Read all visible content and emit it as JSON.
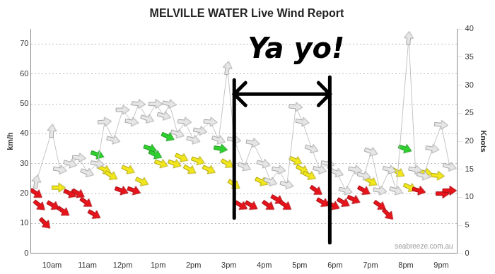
{
  "chart_data": {
    "type": "scatter",
    "title": "MELVILLE WATER Live Wind Report",
    "y_label": "km/h",
    "y2_label": "Knots",
    "xlim": [
      9.4,
      21.45
    ],
    "xticks": [
      {
        "value": 10,
        "label": "10am"
      },
      {
        "value": 11,
        "label": "11am"
      },
      {
        "value": 12,
        "label": "12pm"
      },
      {
        "value": 13,
        "label": "1pm"
      },
      {
        "value": 14,
        "label": "2pm"
      },
      {
        "value": 15,
        "label": "3pm"
      },
      {
        "value": 16,
        "label": "4pm"
      },
      {
        "value": 17,
        "label": "5pm"
      },
      {
        "value": 18,
        "label": "6pm"
      },
      {
        "value": 19,
        "label": "7pm"
      },
      {
        "value": 20,
        "label": "8pm"
      },
      {
        "value": 21,
        "label": "9pm"
      }
    ],
    "ylim": [
      0,
      75
    ],
    "yticks": [
      0,
      10,
      20,
      30,
      40,
      50,
      60,
      70
    ],
    "y2lim": [
      0,
      40
    ],
    "y2ticks": [
      0,
      5,
      10,
      15,
      20,
      25,
      30,
      35,
      40
    ],
    "grid": true,
    "annotations": [
      {
        "text": "Ya yo!",
        "x_range": [
          15.15,
          17.85
        ]
      },
      {
        "text": "seabreeze.com.au"
      }
    ],
    "series": [
      {
        "color": "#e6e6e6",
        "marker": "arrow",
        "line_style": "solid",
        "x": [
          9.56,
          10.0,
          10.23,
          10.52,
          10.77,
          11.0,
          11.29,
          11.49,
          11.74,
          12.0,
          12.26,
          12.45,
          12.7,
          12.93,
          13.17,
          13.32,
          13.55,
          13.75,
          14.0,
          14.19,
          14.48,
          14.71,
          14.96,
          15.15,
          15.44,
          15.68,
          15.98,
          16.18,
          16.41,
          16.64,
          16.89,
          17.08,
          17.34,
          17.57,
          17.8,
          18.05,
          18.3,
          18.57,
          18.82,
          19.02,
          19.27,
          19.54,
          19.73,
          20.08,
          20.27,
          20.5,
          20.75,
          21.0,
          21.24
        ],
        "values": [
          24,
          41,
          28,
          30,
          32,
          27,
          30,
          44,
          38,
          48,
          44,
          50,
          45,
          50,
          46,
          50,
          40,
          44,
          38,
          41,
          44,
          38,
          62,
          38,
          29,
          37,
          30,
          24,
          28,
          23,
          49,
          44,
          35,
          28,
          30,
          27,
          21,
          28,
          26,
          34,
          21,
          28,
          21,
          72,
          28,
          26,
          35,
          43,
          29
        ],
        "direction": [
          -80,
          -85,
          10,
          15,
          5,
          20,
          10,
          -5,
          15,
          0,
          10,
          5,
          20,
          0,
          15,
          10,
          20,
          5,
          15,
          10,
          5,
          20,
          -80,
          10,
          25,
          10,
          15,
          20,
          10,
          15,
          5,
          10,
          20,
          15,
          10,
          20,
          15,
          10,
          15,
          20,
          10,
          15,
          20,
          -85,
          10,
          15,
          10,
          5,
          15
        ]
      },
      {
        "color": "#e8141b",
        "marker": "arrow",
        "line_style": "none",
        "colors": [
          "#e8141b",
          "#e8141b",
          "#e8141b",
          "#e8141b",
          "#f2e61c",
          "#e8141b",
          "#e8141b",
          "#e8141b",
          "#e8141b",
          "#e8141b",
          "#2ed12e",
          "#f2e61c",
          "#f2e61c",
          "#e8141b",
          "#f2e61c",
          "#e8141b",
          "#f2e61c",
          "#2ed12e",
          "#2ed12e",
          "#f2e61c",
          "#2ed12e",
          "#f2e61c",
          "#f2e61c",
          "#f2e61c",
          "#f2e61c",
          "#f2e61c",
          "#2ed12e",
          "#f2e61c",
          "#f2e61c",
          "#e8141b",
          "#e8141b",
          "#f2e61c",
          "#e8141b",
          "#e8141b",
          "#e8141b",
          "#f2e61c",
          "#f2e61c",
          "#f2e61c",
          "#e8141b",
          "#e8141b",
          "#e8141b",
          "#e8141b",
          "#e8141b",
          "#e8141b",
          "#f2e61c",
          "#e8141b",
          "#e8141b",
          "#f2e61c",
          "#2ed12e",
          "#f2e61c",
          "#e8141b",
          "#f2e61c",
          "#f2e61c",
          "#e8141b",
          "#e8141b"
        ],
        "x": [
          9.56,
          9.65,
          9.81,
          10.04,
          10.19,
          10.33,
          10.52,
          10.75,
          10.97,
          11.2,
          11.29,
          11.49,
          11.68,
          11.97,
          12.16,
          12.32,
          12.55,
          12.78,
          12.93,
          13.09,
          13.28,
          13.47,
          13.67,
          13.9,
          14.13,
          14.44,
          14.77,
          14.96,
          15.15,
          15.35,
          15.64,
          15.93,
          16.12,
          16.37,
          16.6,
          16.89,
          17.08,
          17.28,
          17.47,
          17.66,
          17.95,
          18.24,
          18.53,
          18.82,
          19.02,
          19.27,
          19.5,
          19.79,
          19.98,
          20.12,
          20.37,
          20.56,
          20.9,
          21.04,
          21.24
        ],
        "values": [
          20,
          16,
          10,
          16,
          22,
          14,
          20,
          20,
          17,
          13,
          33,
          28,
          26,
          21,
          28,
          21,
          24,
          35,
          33,
          30,
          39,
          30,
          32,
          28,
          31,
          28,
          35,
          30,
          23,
          16,
          16,
          24,
          16,
          18,
          16,
          31,
          28,
          26,
          21,
          17,
          16,
          17,
          18,
          21,
          24,
          16,
          13,
          27,
          35,
          22,
          21,
          27,
          26,
          20,
          21
        ],
        "direction": [
          35,
          40,
          45,
          30,
          0,
          35,
          25,
          30,
          35,
          30,
          20,
          25,
          30,
          20,
          25,
          20,
          25,
          20,
          25,
          20,
          25,
          20,
          25,
          30,
          20,
          25,
          10,
          30,
          35,
          30,
          30,
          25,
          35,
          30,
          35,
          25,
          30,
          25,
          35,
          30,
          25,
          30,
          25,
          30,
          30,
          35,
          45,
          30,
          20,
          25,
          15,
          10,
          5,
          0,
          0
        ]
      }
    ]
  }
}
